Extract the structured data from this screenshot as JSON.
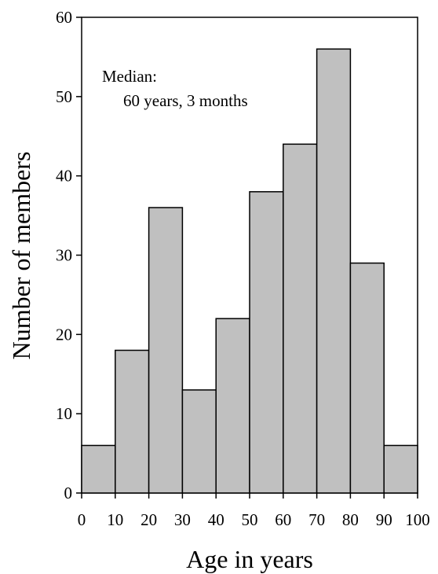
{
  "chart_data": {
    "type": "bar",
    "bins": [
      [
        0,
        10
      ],
      [
        10,
        20
      ],
      [
        20,
        30
      ],
      [
        30,
        40
      ],
      [
        40,
        50
      ],
      [
        50,
        60
      ],
      [
        60,
        70
      ],
      [
        70,
        80
      ],
      [
        80,
        90
      ],
      [
        90,
        100
      ]
    ],
    "values": [
      6,
      18,
      36,
      13,
      22,
      38,
      44,
      56,
      29,
      6
    ],
    "xlabel": "Age in years",
    "ylabel": "Number of members",
    "xlim": [
      0,
      100
    ],
    "ylim": [
      0,
      60
    ],
    "xticks": [
      "0",
      "10",
      "20",
      "30",
      "40",
      "50",
      "60",
      "70",
      "80",
      "90",
      "100"
    ],
    "yticks": [
      "0",
      "10",
      "20",
      "30",
      "40",
      "50",
      "60"
    ],
    "annotation": {
      "line1": "Median:",
      "line2": "60 years, 3 months"
    },
    "grid": false,
    "legend": "none",
    "colors": {
      "bar_fill": "#c0c0c0",
      "bar_stroke": "#000000"
    }
  }
}
